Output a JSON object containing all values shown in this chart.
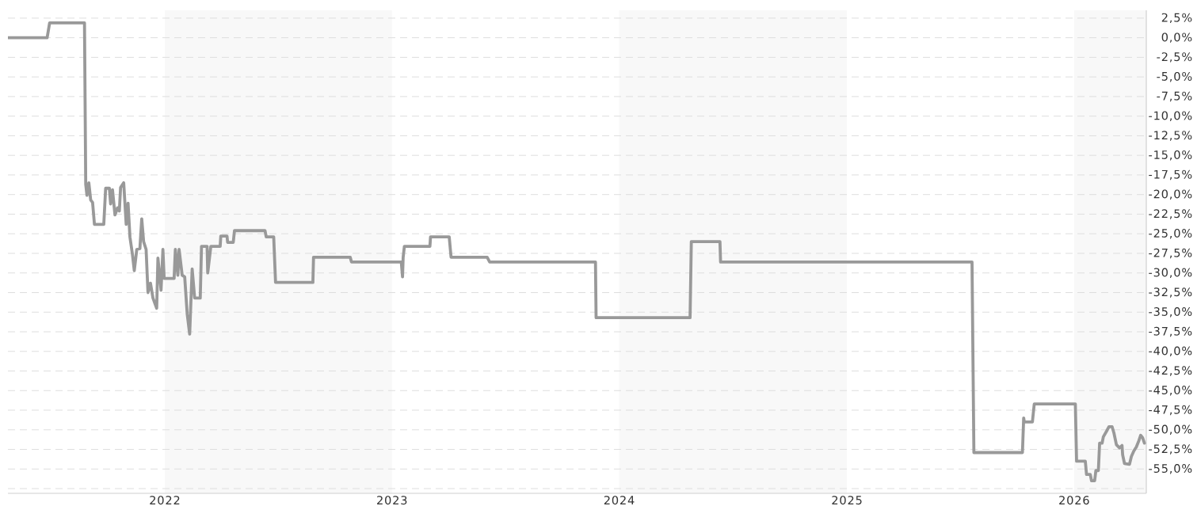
{
  "chart_data": {
    "type": "line",
    "x": [
      "2021-04-24",
      "2021-06-26",
      "2021-06-30",
      "2021-08-25",
      "2021-08-27",
      "2021-08-29",
      "2021-09-01",
      "2021-09-04",
      "2021-09-07",
      "2021-09-10",
      "2021-09-25",
      "2021-09-28",
      "2021-10-04",
      "2021-10-06",
      "2021-10-09",
      "2021-10-13",
      "2021-10-17",
      "2021-10-20",
      "2021-10-22",
      "2021-10-27",
      "2021-10-31",
      "2021-11-03",
      "2021-11-06",
      "2021-11-10",
      "2021-11-13",
      "2021-11-17",
      "2021-11-22",
      "2021-11-25",
      "2021-11-28",
      "2021-12-02",
      "2021-12-05",
      "2021-12-09",
      "2021-12-13",
      "2021-12-19",
      "2021-12-21",
      "2021-12-26",
      "2021-12-29",
      "2021-12-31",
      "2022-01-16",
      "2022-01-18",
      "2022-01-22",
      "2022-01-24",
      "2022-01-29",
      "2022-02-02",
      "2022-02-06",
      "2022-02-10",
      "2022-02-14",
      "2022-02-18",
      "2022-02-27",
      "2022-03-01",
      "2022-03-10",
      "2022-03-11",
      "2022-03-16",
      "2022-03-31",
      "2022-04-01",
      "2022-04-11",
      "2022-04-12",
      "2022-04-21",
      "2022-04-23",
      "2022-06-11",
      "2022-06-13",
      "2022-06-25",
      "2022-06-28",
      "2022-08-27",
      "2022-08-28",
      "2022-10-26",
      "2022-10-28",
      "2023-01-16",
      "2023-01-18",
      "2023-01-19",
      "2023-01-21",
      "2023-03-03",
      "2023-03-04",
      "2023-04-03",
      "2023-04-06",
      "2023-06-03",
      "2023-06-07",
      "2023-11-24",
      "2023-11-25",
      "2024-04-24",
      "2024-04-26",
      "2024-06-11",
      "2024-06-12",
      "2025-07-21",
      "2025-07-24",
      "2025-10-10",
      "2025-10-12",
      "2025-10-13",
      "2025-10-26",
      "2025-10-29",
      "2026-01-03",
      "2026-01-05",
      "2026-01-19",
      "2026-01-21",
      "2026-01-27",
      "2026-01-29",
      "2026-02-03",
      "2026-02-05",
      "2026-02-09",
      "2026-02-11",
      "2026-02-15",
      "2026-02-17",
      "2026-02-22",
      "2026-02-26",
      "2026-03-03",
      "2026-03-06",
      "2026-03-10",
      "2026-03-15",
      "2026-03-19",
      "2026-03-20",
      "2026-03-23",
      "2026-03-31",
      "2026-04-03",
      "2026-04-07",
      "2026-04-11",
      "2026-04-15",
      "2026-04-18",
      "2026-04-21",
      "2026-04-24"
    ],
    "series": [
      {
        "color": "#999999",
        "values": [
          0.0,
          0.0,
          1.9,
          1.9,
          -18.7,
          -20.1,
          -18.5,
          -20.7,
          -21.0,
          -23.8,
          -23.8,
          -19.2,
          -19.2,
          -21.2,
          -19.4,
          -22.6,
          -21.7,
          -22.1,
          -19.1,
          -18.5,
          -23.8,
          -21.1,
          -25.4,
          -27.6,
          -29.7,
          -27.0,
          -26.9,
          -23.1,
          -26.0,
          -27.0,
          -32.5,
          -31.3,
          -33.2,
          -34.5,
          -28.1,
          -32.2,
          -27.0,
          -30.7,
          -30.7,
          -27.0,
          -30.3,
          -27.0,
          -30.3,
          -30.5,
          -35.2,
          -37.8,
          -29.5,
          -33.2,
          -33.2,
          -26.6,
          -26.6,
          -30.0,
          -26.6,
          -26.6,
          -25.3,
          -25.3,
          -26.1,
          -26.1,
          -24.6,
          -24.6,
          -25.4,
          -25.4,
          -31.2,
          -31.2,
          -28.0,
          -28.0,
          -28.6,
          -28.6,
          -30.5,
          -28.0,
          -26.6,
          -26.6,
          -25.4,
          -25.4,
          -28.0,
          -28.0,
          -28.6,
          -28.6,
          -35.7,
          -35.7,
          -26.0,
          -26.0,
          -28.6,
          -28.6,
          -52.9,
          -52.9,
          -48.5,
          -49.0,
          -49.0,
          -46.7,
          -46.7,
          -54.0,
          -54.0,
          -55.7,
          -55.7,
          -56.5,
          -56.5,
          -55.2,
          -55.2,
          -51.7,
          -51.7,
          -50.9,
          -50.2,
          -49.6,
          -49.6,
          -50.4,
          -51.9,
          -52.3,
          -52.0,
          -53.2,
          -54.3,
          -54.4,
          -53.4,
          -52.7,
          -52.2,
          -51.4,
          -50.7,
          -51.0,
          -51.7
        ]
      }
    ],
    "xlim": [
      "2021-04-24",
      "2026-04-27"
    ],
    "xticks": [
      "2022",
      "2023",
      "2024",
      "2025",
      "2026"
    ],
    "ylim": [
      -58.1,
      3.5
    ],
    "yticks": [
      {
        "value": -57.5,
        "label": null
      },
      {
        "value": -55,
        "label": "-55,0%"
      },
      {
        "value": -52.5,
        "label": "-52,5%"
      },
      {
        "value": -50,
        "label": "-50,0%"
      },
      {
        "value": -47.5,
        "label": "-47,5%"
      },
      {
        "value": -45,
        "label": "-45,0%"
      },
      {
        "value": -42.5,
        "label": "-42,5%"
      },
      {
        "value": -40,
        "label": "-40,0%"
      },
      {
        "value": -37.5,
        "label": "-37,5%"
      },
      {
        "value": -35,
        "label": "-35,0%"
      },
      {
        "value": -32.5,
        "label": "-32,5%"
      },
      {
        "value": -30,
        "label": "-30,0%"
      },
      {
        "value": -27.5,
        "label": "-27,5%"
      },
      {
        "value": -25,
        "label": "-25,0%"
      },
      {
        "value": -22.5,
        "label": "-22,5%"
      },
      {
        "value": -20,
        "label": "-20,0%"
      },
      {
        "value": -17.5,
        "label": "-17,5%"
      },
      {
        "value": -15,
        "label": "-15,0%"
      },
      {
        "value": -12.5,
        "label": "-12,5%"
      },
      {
        "value": -10,
        "label": "-10,0%"
      },
      {
        "value": -7.5,
        "label": "-7,5%"
      },
      {
        "value": -5,
        "label": "-5,0%"
      },
      {
        "value": -2.5,
        "label": "-2,5%"
      },
      {
        "value": 0,
        "label": "0,0%"
      },
      {
        "value": 2.5,
        "label": "2,5%"
      }
    ],
    "grid": "y",
    "bands": [
      {
        "axis": "x",
        "from": "2022",
        "to": "2023",
        "color": "#f8f8f8"
      },
      {
        "axis": "x",
        "from": "2024",
        "to": "2025",
        "color": "#f8f8f8"
      },
      {
        "axis": "x",
        "from": "2026",
        "to": "2026-04-27",
        "color": "#f8f8f8"
      }
    ]
  }
}
